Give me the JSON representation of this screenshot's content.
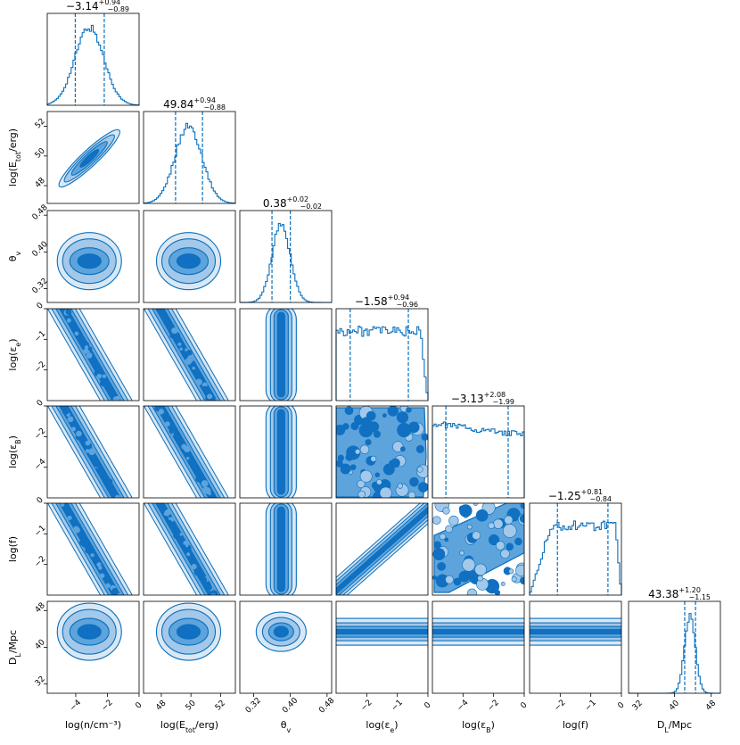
{
  "colors": {
    "fill_outer": "#dae8f5",
    "fill_mid_outer": "#a3c8e9",
    "fill_mid_inner": "#5da3dc",
    "fill_inner": "#1170c2",
    "line": "#0a70bd",
    "axes": "#000000"
  },
  "chart_data": {
    "type": "corner",
    "parameters": [
      {
        "key": "logn",
        "axis_label": "log(n/cm⁻³)",
        "range": [
          -5.8,
          0
        ],
        "ticks": [
          -4,
          -2,
          0
        ],
        "tick_labels": [
          "−4",
          "−2",
          "0"
        ],
        "median": -3.14,
        "summary": {
          "main": "−3.14",
          "plus": "+0.94",
          "minus": "−0.89"
        },
        "quantiles": [
          -4.03,
          -2.2
        ]
      },
      {
        "key": "logE",
        "axis_label": "log(E_tot/erg)",
        "range": [
          46.8,
          53.0
        ],
        "ticks": [
          48,
          50,
          52
        ],
        "tick_labels": [
          "48",
          "50",
          "52"
        ],
        "median": 49.84,
        "summary": {
          "main": "49.84",
          "plus": "+0.94",
          "minus": "−0.88"
        },
        "quantiles": [
          48.96,
          50.78
        ]
      },
      {
        "key": "theta",
        "axis_label": "θ_v",
        "range": [
          0.29,
          0.49
        ],
        "ticks": [
          0.32,
          0.4,
          0.48
        ],
        "tick_labels": [
          "0.32",
          "0.40",
          "0.48"
        ],
        "median": 0.38,
        "summary": {
          "main": "0.38",
          "plus": "+0.02",
          "minus": "−0.02"
        },
        "quantiles": [
          0.36,
          0.4
        ]
      },
      {
        "key": "logee",
        "axis_label": "log(ε_e)",
        "range": [
          -3.0,
          0
        ],
        "ticks": [
          -2,
          -1,
          0
        ],
        "tick_labels": [
          "−2",
          "−1",
          "0"
        ],
        "median": -1.58,
        "summary": {
          "main": "−1.58",
          "plus": "+0.94",
          "minus": "−0.96"
        },
        "quantiles": [
          -2.54,
          -0.64
        ]
      },
      {
        "key": "logeB",
        "axis_label": "log(ε_B)",
        "range": [
          -6.0,
          0
        ],
        "ticks": [
          -4,
          -2,
          0
        ],
        "tick_labels": [
          "−4",
          "−2",
          "0"
        ],
        "median": -3.13,
        "summary": {
          "main": "−3.13",
          "plus": "+2.08",
          "minus": "−1.99"
        },
        "quantiles": [
          -5.12,
          -1.05
        ]
      },
      {
        "key": "logf",
        "axis_label": "log(f)",
        "range": [
          -3.0,
          0
        ],
        "ticks": [
          -2,
          -1,
          0
        ],
        "tick_labels": [
          "−2",
          "−1",
          "0"
        ],
        "median": -1.25,
        "summary": {
          "main": "−1.25",
          "plus": "+0.81",
          "minus": "−0.84"
        },
        "quantiles": [
          -2.09,
          -0.44
        ]
      },
      {
        "key": "DL",
        "axis_label": "D_L/Mpc",
        "range": [
          30,
          50
        ],
        "ticks": [
          32,
          40,
          48
        ],
        "tick_labels": [
          "32",
          "40",
          "48"
        ],
        "median": 43.38,
        "summary": {
          "main": "43.38",
          "plus": "+1.20",
          "minus": "−1.15"
        },
        "quantiles": [
          42.23,
          44.58
        ]
      }
    ],
    "diag_ylabels": [
      "",
      "log(E_tot/erg)",
      "θ_v",
      "log(ε_e)",
      "log(ε_B)",
      "log(f)",
      "D_L/Mpc"
    ],
    "contour_levels": [
      "inner",
      "mid-inner",
      "mid-outer",
      "outer"
    ]
  }
}
